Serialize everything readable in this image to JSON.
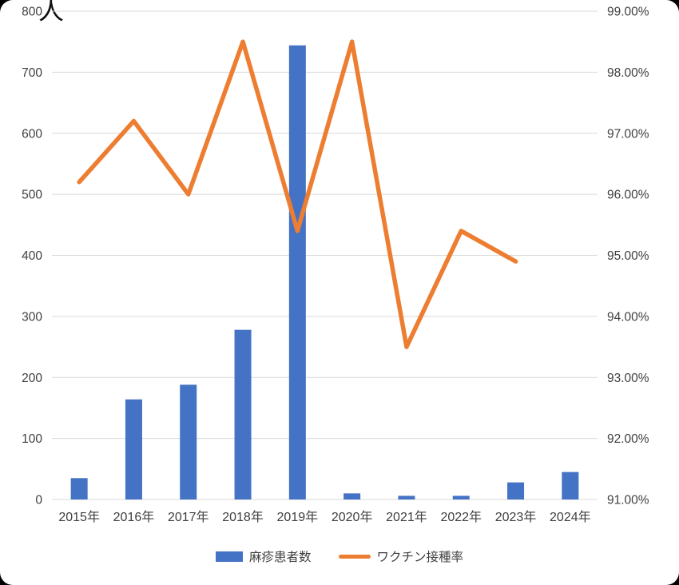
{
  "frame": {
    "background_color": "#000000",
    "canvas_color": "#ffffff"
  },
  "chart_data": {
    "type": "combo",
    "title": "",
    "unit_label": "人",
    "categories": [
      "2015年",
      "2016年",
      "2017年",
      "2018年",
      "2019年",
      "2020年",
      "2021年",
      "2022年",
      "2023年",
      "2024年"
    ],
    "series": [
      {
        "name": "麻疹患者数",
        "type": "bar",
        "axis": "left",
        "color": "#4472C4",
        "values": [
          35,
          164,
          188,
          278,
          744,
          10,
          6,
          6,
          28,
          45
        ]
      },
      {
        "name": "ワクチン接種率",
        "type": "line",
        "axis": "right",
        "color": "#ED7D31",
        "values": [
          96.2,
          97.2,
          96.0,
          98.5,
          95.4,
          98.5,
          93.5,
          95.4,
          94.9,
          null
        ]
      }
    ],
    "left_axis": {
      "min": 0,
      "max": 800,
      "tick_step": 100,
      "ticks": [
        "800",
        "700",
        "600",
        "500",
        "400",
        "300",
        "200",
        "100",
        "0"
      ]
    },
    "right_axis": {
      "min": 91,
      "max": 99,
      "tick_step": 1,
      "ticks": [
        "99.00%",
        "98.00%",
        "97.00%",
        "96.00%",
        "95.00%",
        "94.00%",
        "93.00%",
        "92.00%",
        "91.00%"
      ]
    },
    "grid": true,
    "grid_color": "#D9D9D9",
    "legend_position": "bottom"
  }
}
